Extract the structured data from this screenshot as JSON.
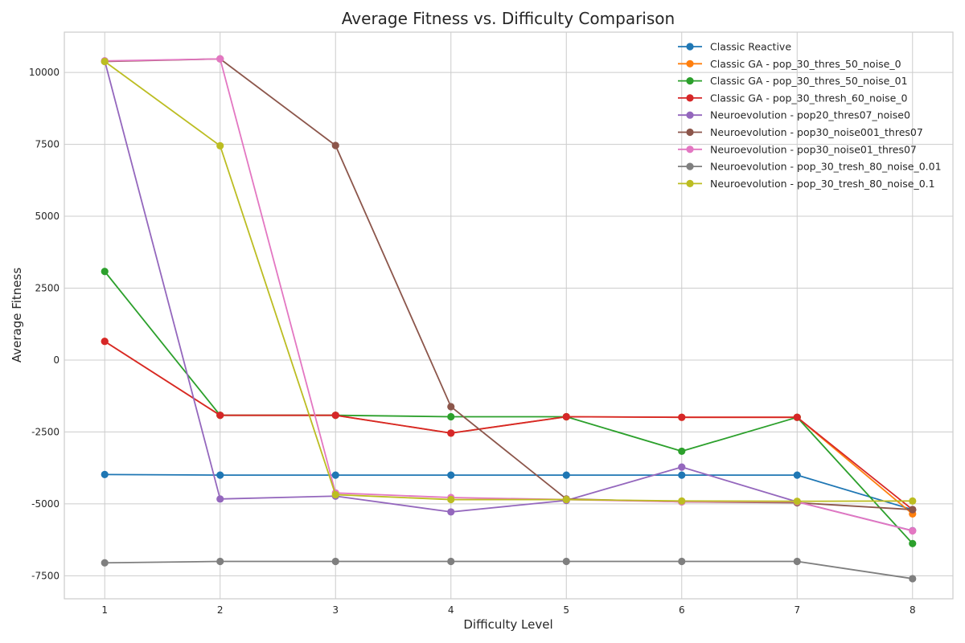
{
  "chart_data": {
    "type": "line",
    "title": "Average Fitness vs. Difficulty Comparison",
    "xlabel": "Difficulty Level",
    "ylabel": "Average Fitness",
    "x": [
      1,
      2,
      3,
      4,
      5,
      6,
      7,
      8
    ],
    "xlim": [
      0.65,
      8.35
    ],
    "ylim": [
      -8300,
      11400
    ],
    "yticks": [
      -7500,
      -5000,
      -2500,
      0,
      2500,
      5000,
      7500,
      10000
    ],
    "grid": true,
    "legend_position": "top-right",
    "series": [
      {
        "name": "Classic Reactive",
        "color": "#1f77b4",
        "values": [
          -3980,
          -4000,
          -4000,
          -4000,
          -4000,
          -4000,
          -4000,
          -5200
        ]
      },
      {
        "name": "Classic GA - pop_30_thres_50_noise_0",
        "color": "#ff7f0e",
        "values": [
          650,
          -1920,
          -1920,
          -2540,
          -1970,
          -1990,
          -1990,
          -5350
        ]
      },
      {
        "name": "Classic GA - pop_30_thres_50_noise_01",
        "color": "#2ca02c",
        "values": [
          3080,
          -1920,
          -1920,
          -1970,
          -1970,
          -3170,
          -1990,
          -6380
        ]
      },
      {
        "name": "Classic GA - pop_30_thresh_60_noise_0",
        "color": "#d62728",
        "values": [
          650,
          -1920,
          -1920,
          -2540,
          -1970,
          -1990,
          -1990,
          -5200
        ]
      },
      {
        "name": "Neuroevolution - pop20_thres07_noise0",
        "color": "#9467bd",
        "values": [
          10400,
          -4830,
          -4730,
          -5280,
          -4880,
          -3720,
          -4930,
          -5930
        ]
      },
      {
        "name": "Neuroevolution - pop30_noise001_thres07",
        "color": "#8c564b",
        "values": [
          10380,
          10470,
          7460,
          -1620,
          -4830,
          -4930,
          -4960,
          -5200
        ]
      },
      {
        "name": "Neuroevolution - pop30_noise01_thres07",
        "color": "#e377c2",
        "values": [
          10400,
          10470,
          -4620,
          -4780,
          -4850,
          -4930,
          -4930,
          -5940
        ]
      },
      {
        "name": "Neuroevolution - pop_30_tresh_80_noise_0.01",
        "color": "#7f7f7f",
        "values": [
          -7050,
          -7000,
          -7000,
          -7000,
          -7000,
          -7000,
          -7000,
          -7600
        ]
      },
      {
        "name": "Neuroevolution - pop_30_tresh_80_noise_0.1",
        "color": "#bcbd22",
        "values": [
          10380,
          7450,
          -4680,
          -4850,
          -4850,
          -4900,
          -4910,
          -4900
        ]
      }
    ]
  }
}
